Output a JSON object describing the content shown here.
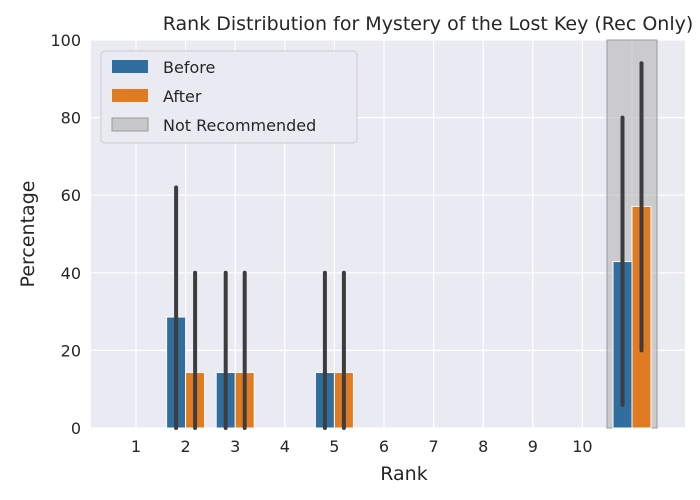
{
  "chart_data": {
    "type": "bar",
    "title": "Rank Distribution for Mystery of the Lost Key (Rec Only)",
    "xlabel": "Rank",
    "ylabel": "Percentage",
    "ylim": [
      0,
      100
    ],
    "yticks": [
      "0",
      "20",
      "40",
      "60",
      "80",
      "100"
    ],
    "categories": [
      "1",
      "2",
      "3",
      "4",
      "5",
      "6",
      "7",
      "8",
      "9",
      "10",
      ""
    ],
    "series": [
      {
        "name": "Before",
        "color": "#2f6e9f",
        "values": [
          0,
          28.6,
          14.3,
          0,
          14.3,
          0,
          0,
          0,
          0,
          0,
          42.9
        ],
        "ci": [
          [
            0,
            0
          ],
          [
            0,
            62
          ],
          [
            0,
            40
          ],
          [
            0,
            0
          ],
          [
            0,
            40
          ],
          [
            0,
            0
          ],
          [
            0,
            0
          ],
          [
            0,
            0
          ],
          [
            0,
            0
          ],
          [
            0,
            0
          ],
          [
            6,
            80
          ]
        ]
      },
      {
        "name": "After",
        "color": "#e07b22",
        "values": [
          0,
          14.3,
          14.3,
          0,
          14.3,
          0,
          0,
          0,
          0,
          0,
          57.1
        ],
        "ci": [
          [
            0,
            0
          ],
          [
            0,
            40
          ],
          [
            0,
            40
          ],
          [
            0,
            0
          ],
          [
            0,
            40
          ],
          [
            0,
            0
          ],
          [
            0,
            0
          ],
          [
            0,
            0
          ],
          [
            0,
            0
          ],
          [
            0,
            0
          ],
          [
            20,
            94
          ]
        ]
      }
    ],
    "highlight": {
      "name": "Not Recommended",
      "category_index": 10,
      "color": "#b0b0b0"
    },
    "legend_position": "top-left",
    "grid": true,
    "background": "#eaeaf2",
    "grid_color": "#ffffff",
    "errorbar_color": "#3d3d3d"
  }
}
